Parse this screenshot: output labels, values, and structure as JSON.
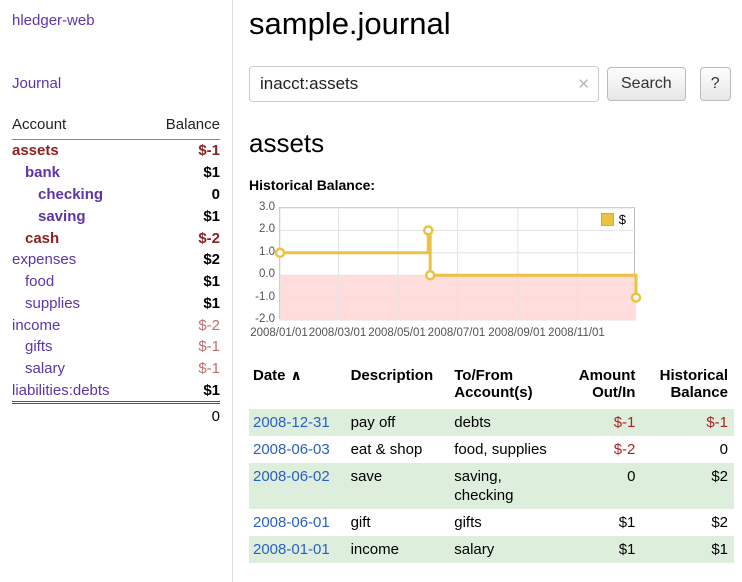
{
  "app": {
    "brand": "hledger-web",
    "nav_journal": "Journal"
  },
  "header": {
    "title": "sample.journal"
  },
  "search": {
    "value": "inacct:assets",
    "clear_icon": "✕",
    "button_label": "Search",
    "help_label": "?"
  },
  "main": {
    "account_heading": "assets"
  },
  "colors": {
    "link_purple": "#5d35a8",
    "link_blue": "#2a5fc4",
    "negative_strong": "#8b2323",
    "negative_dim": "#c07070",
    "negative_amount": "#a82424",
    "row_shade_green": "#ddeedd",
    "chart_series": "#edc240",
    "chart_negative_region": "#ffdddd"
  },
  "sidebar": {
    "table_headers": {
      "account": "Account",
      "balance": "Balance"
    },
    "accounts": [
      {
        "name": "assets",
        "indent": 1,
        "in_query": true,
        "name_style": "neg",
        "balance": "$-1",
        "balance_style": "neg"
      },
      {
        "name": "bank",
        "indent": 2,
        "in_query": true,
        "name_style": "link",
        "balance": "$1",
        "balance_style": "pos"
      },
      {
        "name": "checking",
        "indent": 3,
        "in_query": true,
        "name_style": "link",
        "balance": "0",
        "balance_style": "pos"
      },
      {
        "name": "saving",
        "indent": 3,
        "in_query": true,
        "name_style": "link",
        "balance": "$1",
        "balance_style": "pos"
      },
      {
        "name": "cash",
        "indent": 2,
        "in_query": true,
        "name_style": "neg",
        "balance": "$-2",
        "balance_style": "neg"
      },
      {
        "name": "expenses",
        "indent": 1,
        "in_query": false,
        "name_style": "link",
        "balance": "$2",
        "balance_style": "pos"
      },
      {
        "name": "food",
        "indent": 2,
        "in_query": false,
        "name_style": "link",
        "balance": "$1",
        "balance_style": "pos"
      },
      {
        "name": "supplies",
        "indent": 2,
        "in_query": false,
        "name_style": "link",
        "balance": "$1",
        "balance_style": "pos"
      },
      {
        "name": "income",
        "indent": 1,
        "in_query": false,
        "name_style": "link",
        "balance": "$-2",
        "balance_style": "neg-dim"
      },
      {
        "name": "gifts",
        "indent": 2,
        "in_query": false,
        "name_style": "link",
        "balance": "$-1",
        "balance_style": "neg-dim"
      },
      {
        "name": "salary",
        "indent": 2,
        "in_query": false,
        "name_style": "link",
        "balance": "$-1",
        "balance_style": "neg-dim"
      },
      {
        "name": "liabilities:debts",
        "indent": 1,
        "in_query": false,
        "name_style": "link",
        "balance": "$1",
        "balance_style": "pos"
      }
    ],
    "total": "0"
  },
  "chart_data": {
    "type": "line",
    "step": true,
    "title": "Historical Balance:",
    "x_range": [
      "2008-01-01",
      "2008-12-31"
    ],
    "y_range": [
      -2,
      3
    ],
    "y_ticks": [
      "3.0",
      "2.0",
      "1.0",
      "0.0",
      "-1.0",
      "-2.0"
    ],
    "x_ticks": [
      {
        "x": "2008-01-01",
        "label": "2008/01/01"
      },
      {
        "x": "2008-03-01",
        "label": "2008/03/01"
      },
      {
        "x": "2008-05-01",
        "label": "2008/05/01"
      },
      {
        "x": "2008-07-01",
        "label": "2008/07/01"
      },
      {
        "x": "2008-09-01",
        "label": "2008/09/01"
      },
      {
        "x": "2008-11-01",
        "label": "2008/11/01"
      }
    ],
    "grid": true,
    "legend_position": "top-right",
    "legend": {
      "label": "$",
      "color": "#edc240"
    },
    "negative_region_color": "#ffdddd",
    "series": [
      {
        "name": "$",
        "color": "#edc240",
        "points": [
          {
            "x": "2008-01-01",
            "y": 1
          },
          {
            "x": "2008-06-01",
            "y": 2
          },
          {
            "x": "2008-06-03",
            "y": 0
          },
          {
            "x": "2008-12-31",
            "y": -1
          }
        ]
      }
    ]
  },
  "register": {
    "headers": {
      "date": "Date",
      "sort_icon": "∧",
      "description": "Description",
      "account_line1": "To/From",
      "account_line2": "Account(s)",
      "amount_line1": "Amount",
      "amount_line2": "Out/In",
      "balance_line1": "Historical",
      "balance_line2": "Balance"
    },
    "rows": [
      {
        "date": "2008-12-31",
        "description": "pay off",
        "accounts": "debts",
        "amount": "$-1",
        "amount_neg": true,
        "balance": "$-1",
        "balance_neg": true,
        "shaded": true
      },
      {
        "date": "2008-06-03",
        "description": "eat & shop",
        "accounts": "food, supplies",
        "amount": "$-2",
        "amount_neg": true,
        "balance": "0",
        "balance_neg": false,
        "shaded": false
      },
      {
        "date": "2008-06-02",
        "description": "save",
        "accounts": "saving,\nchecking",
        "amount": "0",
        "amount_neg": false,
        "balance": "$2",
        "balance_neg": false,
        "shaded": true
      },
      {
        "date": "2008-06-01",
        "description": "gift",
        "accounts": "gifts",
        "amount": "$1",
        "amount_neg": false,
        "balance": "$2",
        "balance_neg": false,
        "shaded": false
      },
      {
        "date": "2008-01-01",
        "description": "income",
        "accounts": "salary",
        "amount": "$1",
        "amount_neg": false,
        "balance": "$1",
        "balance_neg": false,
        "shaded": true
      }
    ]
  }
}
